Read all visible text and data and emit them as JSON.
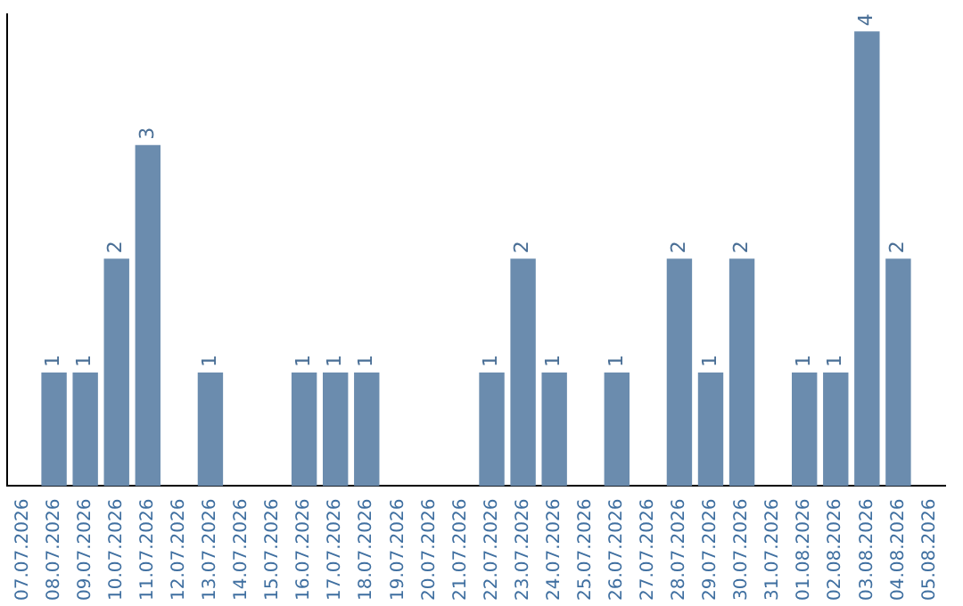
{
  "chart_data": {
    "type": "bar",
    "categories": [
      "07.07.2026",
      "08.07.2026",
      "09.07.2026",
      "10.07.2026",
      "11.07.2026",
      "12.07.2026",
      "13.07.2026",
      "14.07.2026",
      "15.07.2026",
      "16.07.2026",
      "17.07.2026",
      "18.07.2026",
      "19.07.2026",
      "20.07.2026",
      "21.07.2026",
      "22.07.2026",
      "23.07.2026",
      "24.07.2026",
      "25.07.2026",
      "26.07.2026",
      "27.07.2026",
      "28.07.2026",
      "29.07.2026",
      "30.07.2026",
      "31.07.2026",
      "01.08.2026",
      "02.08.2026",
      "03.08.2026",
      "04.08.2026",
      "05.08.2026"
    ],
    "values": [
      null,
      1,
      1,
      2,
      3,
      null,
      1,
      null,
      null,
      1,
      1,
      1,
      null,
      null,
      null,
      1,
      2,
      1,
      null,
      1,
      null,
      2,
      1,
      2,
      null,
      1,
      1,
      4,
      2,
      null
    ],
    "color": "#6b8cae",
    "ylim": [
      0,
      4.15
    ],
    "tick_labels": "x",
    "grid": false,
    "legend": false,
    "data_labels": true
  }
}
